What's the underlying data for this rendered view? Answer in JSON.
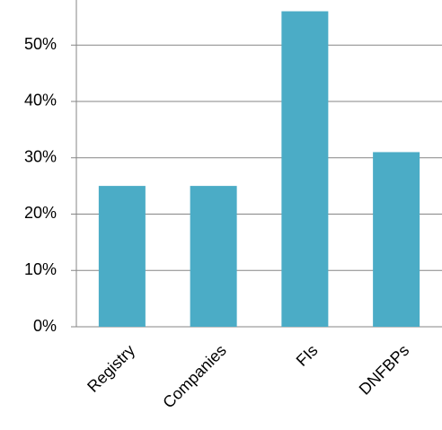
{
  "chart_data": {
    "type": "bar",
    "categories": [
      "Registry",
      "Companies",
      "FIs",
      "DNFBPs"
    ],
    "values": [
      25,
      25,
      56,
      31
    ],
    "color": "#4bacc6",
    "ylim": [
      0,
      58
    ],
    "yticks": [
      {
        "value": 0,
        "label": "0%"
      },
      {
        "value": 10,
        "label": "10%"
      },
      {
        "value": 20,
        "label": "20%"
      },
      {
        "value": 30,
        "label": "30%"
      },
      {
        "value": 40,
        "label": "40%"
      },
      {
        "value": 50,
        "label": "50%"
      }
    ],
    "grid": true
  }
}
